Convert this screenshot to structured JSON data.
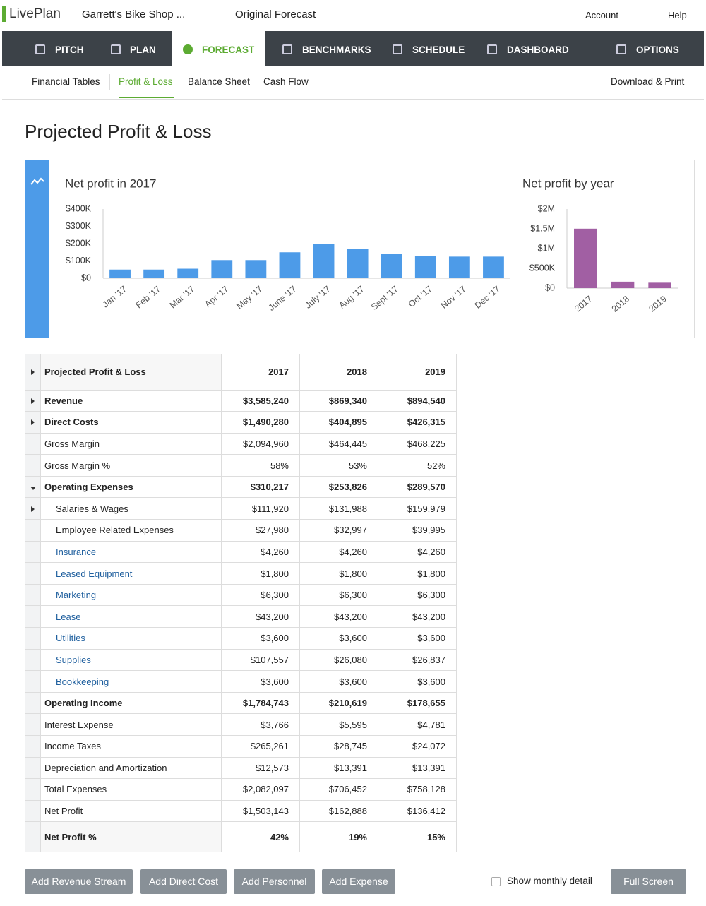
{
  "header": {
    "logo": "LivePlan",
    "business": "Garrett's Bike Shop ...",
    "forecast": "Original Forecast",
    "account": "Account",
    "help": "Help"
  },
  "nav": [
    "PITCH",
    "PLAN",
    "FORECAST",
    "BENCHMARKS",
    "SCHEDULE",
    "DASHBOARD",
    "OPTIONS"
  ],
  "subnav": [
    "Financial Tables",
    "Profit & Loss",
    "Balance Sheet",
    "Cash Flow"
  ],
  "download": "Download & Print",
  "page_title": "Projected Profit & Loss",
  "chart_data": [
    {
      "type": "bar",
      "title": "Net profit in 2017",
      "color": "#4d9be8",
      "categories": [
        "Jan '17",
        "Feb '17",
        "Mar '17",
        "Apr '17",
        "May '17",
        "June '17",
        "July '17",
        "Aug '17",
        "Sept '17",
        "Oct '17",
        "Nov '17",
        "Dec '17"
      ],
      "values": [
        50000,
        50000,
        55000,
        105000,
        105000,
        150000,
        200000,
        170000,
        140000,
        130000,
        125000,
        125000
      ],
      "ylim": [
        0,
        400000
      ],
      "yticks": [
        {
          "value": 0,
          "label": "$0"
        },
        {
          "value": 100000,
          "label": "$100K"
        },
        {
          "value": 200000,
          "label": "$200K"
        },
        {
          "value": 300000,
          "label": "$300K"
        },
        {
          "value": 400000,
          "label": "$400K"
        }
      ]
    },
    {
      "type": "bar",
      "title": "Net profit by year",
      "color": "#a15fa3",
      "categories": [
        "2017",
        "2018",
        "2019"
      ],
      "values": [
        1503143,
        162888,
        136412
      ],
      "ylim": [
        0,
        2000000
      ],
      "yticks": [
        {
          "value": 0,
          "label": "$0"
        },
        {
          "value": 500000,
          "label": "$500K"
        },
        {
          "value": 1000000,
          "label": "$1M"
        },
        {
          "value": 1500000,
          "label": "$1.5M"
        },
        {
          "value": 2000000,
          "label": "$2M"
        }
      ]
    }
  ],
  "table": {
    "header": [
      "Projected Profit & Loss",
      "2017",
      "2018",
      "2019"
    ],
    "rows": [
      [
        "Revenue",
        "$3,585,240",
        "$869,340",
        "$894,540"
      ],
      [
        "Direct Costs",
        "$1,490,280",
        "$404,895",
        "$426,315"
      ],
      [
        "Gross Margin",
        "$2,094,960",
        "$464,445",
        "$468,225"
      ],
      [
        "Gross Margin %",
        "58%",
        "53%",
        "52%"
      ],
      [
        "Operating Expenses",
        "$310,217",
        "$253,826",
        "$289,570"
      ],
      [
        "Salaries & Wages",
        "$111,920",
        "$131,988",
        "$159,979"
      ],
      [
        "Employee Related Expenses",
        "$27,980",
        "$32,997",
        "$39,995"
      ],
      [
        "Insurance",
        "$4,260",
        "$4,260",
        "$4,260"
      ],
      [
        "Leased Equipment",
        "$1,800",
        "$1,800",
        "$1,800"
      ],
      [
        "Marketing",
        "$6,300",
        "$6,300",
        "$6,300"
      ],
      [
        "Lease",
        "$43,200",
        "$43,200",
        "$43,200"
      ],
      [
        "Utilities",
        "$3,600",
        "$3,600",
        "$3,600"
      ],
      [
        "Supplies",
        "$107,557",
        "$26,080",
        "$26,837"
      ],
      [
        "Bookkeeping",
        "$3,600",
        "$3,600",
        "$3,600"
      ],
      [
        "Operating Income",
        "$1,784,743",
        "$210,619",
        "$178,655"
      ],
      [
        "Interest Expense",
        "$3,766",
        "$5,595",
        "$4,781"
      ],
      [
        "Income Taxes",
        "$265,261",
        "$28,745",
        "$24,072"
      ],
      [
        "Depreciation and Amortization",
        "$12,573",
        "$13,391",
        "$13,391"
      ],
      [
        "Total Expenses",
        "$2,082,097",
        "$706,452",
        "$758,128"
      ],
      [
        "Net Profit",
        "$1,503,143",
        "$162,888",
        "$136,412"
      ],
      [
        "Net Profit %",
        "42%",
        "19%",
        "15%"
      ]
    ]
  },
  "buttons": [
    "Add Revenue Stream",
    "Add Direct Cost",
    "Add Personnel",
    "Add Expense"
  ],
  "checkbox": "Show monthly detail",
  "full_screen": "Full Screen"
}
